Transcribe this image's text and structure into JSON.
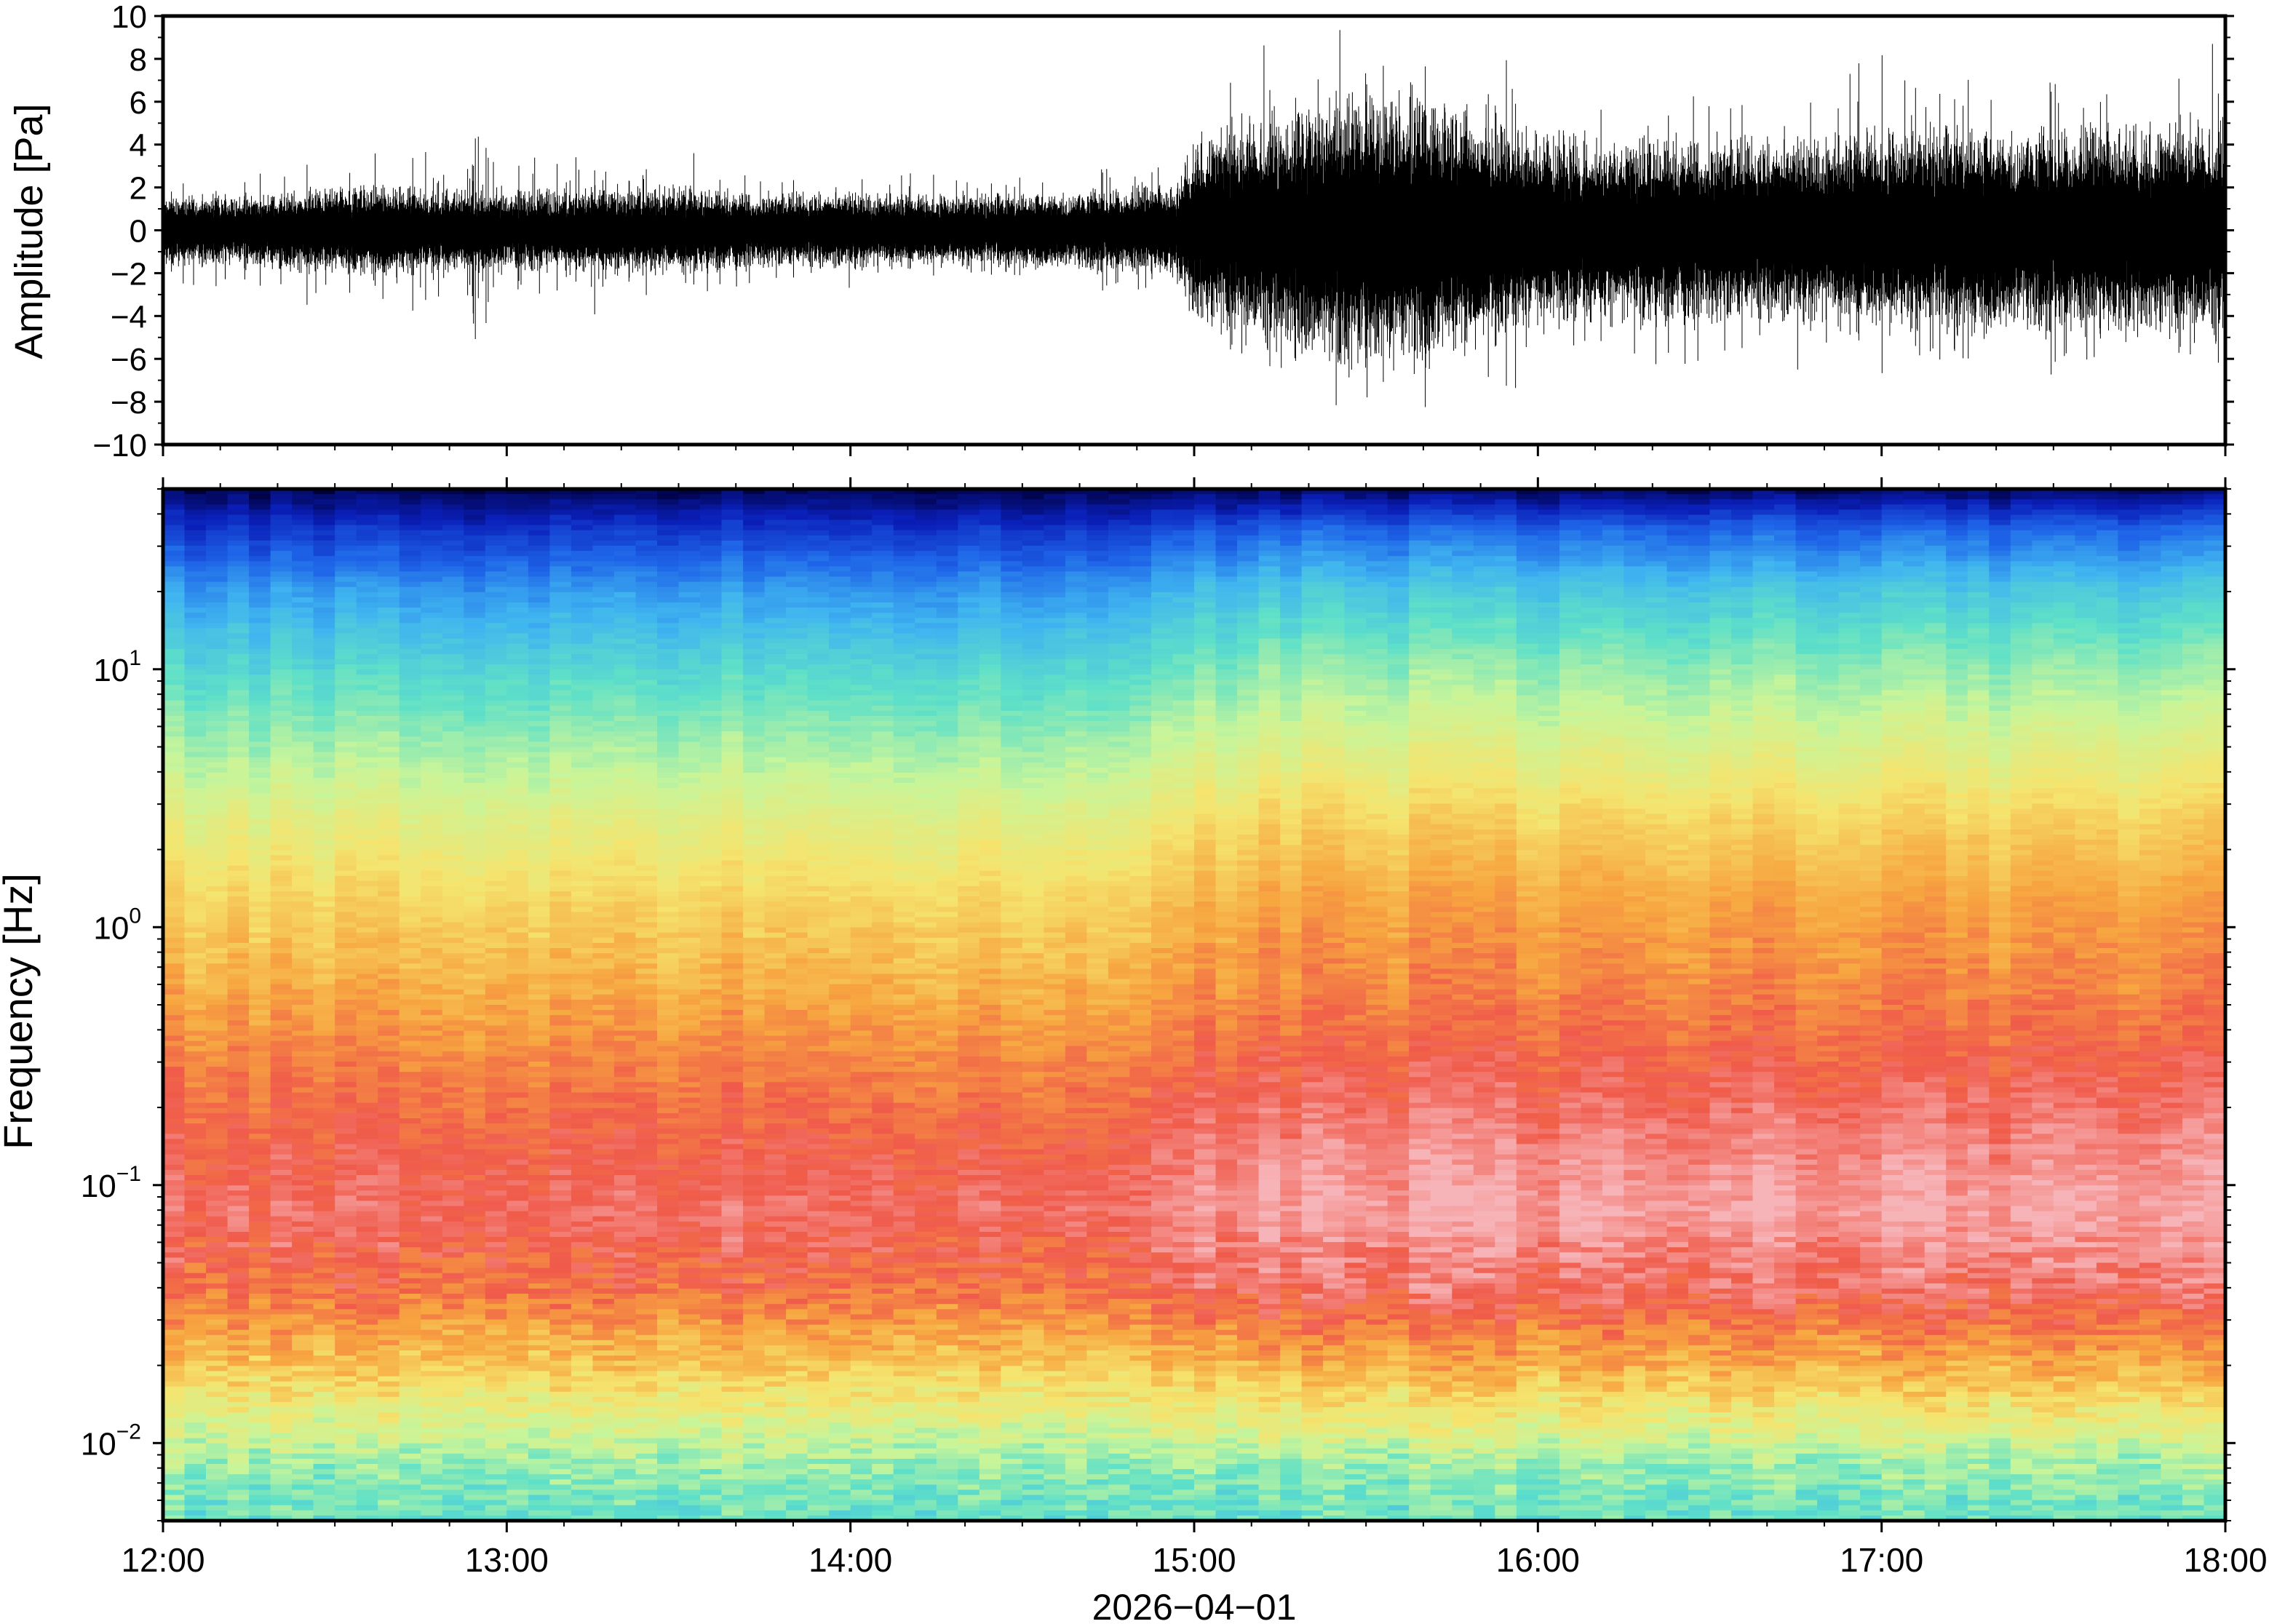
{
  "chart_data": [
    {
      "type": "line",
      "xlabel": "",
      "ylabel": "Amplitude [Pa]",
      "ylim": [
        -10,
        10
      ],
      "yticks": [
        -10,
        -8,
        -6,
        -4,
        -2,
        0,
        2,
        4,
        6,
        8,
        10
      ],
      "ytick_labels": [
        "−10",
        "−8",
        "−6",
        "−4",
        "−2",
        "0",
        "2",
        "4",
        "6",
        "8",
        "10"
      ],
      "xlim": [
        "12:00",
        "18:00"
      ],
      "grid": false,
      "line_color": "#000000",
      "envelope_note_free": true,
      "envelope": {
        "x_hours": [
          12.0,
          12.25,
          12.5,
          12.75,
          13.0,
          13.25,
          13.5,
          13.75,
          14.0,
          14.25,
          14.5,
          14.75,
          14.95,
          15.0,
          15.25,
          15.5,
          15.75,
          16.0,
          16.25,
          16.5,
          16.75,
          17.0,
          17.25,
          17.5,
          17.75,
          18.0
        ],
        "core_amplitude": [
          1.5,
          1.5,
          1.9,
          1.8,
          1.7,
          1.8,
          1.8,
          1.6,
          1.6,
          1.5,
          1.6,
          1.7,
          1.9,
          4.0,
          5.0,
          6.0,
          5.5,
          4.0,
          3.8,
          4.0,
          3.8,
          4.2,
          4.5,
          4.2,
          4.5,
          4.5
        ],
        "peak_amplitude": [
          3.0,
          3.5,
          4.0,
          4.5,
          6.0,
          4.5,
          4.0,
          3.5,
          3.5,
          3.0,
          3.5,
          4.0,
          5.0,
          9.5,
          9.5,
          10.0,
          10.0,
          8.0,
          8.0,
          9.0,
          8.5,
          9.5,
          10.0,
          9.5,
          10.0,
          9.5
        ]
      }
    },
    {
      "type": "heatmap",
      "xlabel": "2026−04−01",
      "ylabel": "Frequency [Hz]",
      "yscale": "log",
      "ylim": [
        0.005,
        50
      ],
      "yticks": [
        0.01,
        0.1,
        1,
        10
      ],
      "ytick_labels": [
        {
          "base": "10",
          "exp": "−2"
        },
        {
          "base": "10",
          "exp": "−1"
        },
        {
          "base": "10",
          "exp": "0"
        },
        {
          "base": "10",
          "exp": "1"
        }
      ],
      "xlim": [
        "12:00",
        "18:00"
      ],
      "xticks": [
        "12:00",
        "13:00",
        "14:00",
        "15:00",
        "16:00",
        "17:00",
        "18:00"
      ],
      "colormap": [
        "#000040",
        "#0a1fb8",
        "#1e64e8",
        "#3fb4f0",
        "#5ee0c8",
        "#c8f59a",
        "#f5e46e",
        "#f7a640",
        "#f05a4a",
        "#f7b4b8"
      ],
      "description_free": true,
      "spectral_profile": {
        "freq_hz": [
          0.005,
          0.008,
          0.012,
          0.02,
          0.04,
          0.08,
          0.15,
          0.3,
          0.6,
          1.2,
          2.5,
          5,
          10,
          20,
          35,
          50
        ],
        "level_before_15h": [
          0.45,
          0.5,
          0.6,
          0.72,
          0.86,
          0.92,
          0.88,
          0.83,
          0.76,
          0.7,
          0.62,
          0.52,
          0.42,
          0.3,
          0.15,
          0.02
        ],
        "level_after_15h": [
          0.45,
          0.5,
          0.62,
          0.76,
          0.92,
          0.98,
          0.94,
          0.88,
          0.82,
          0.78,
          0.7,
          0.6,
          0.5,
          0.38,
          0.22,
          0.03
        ]
      }
    }
  ]
}
